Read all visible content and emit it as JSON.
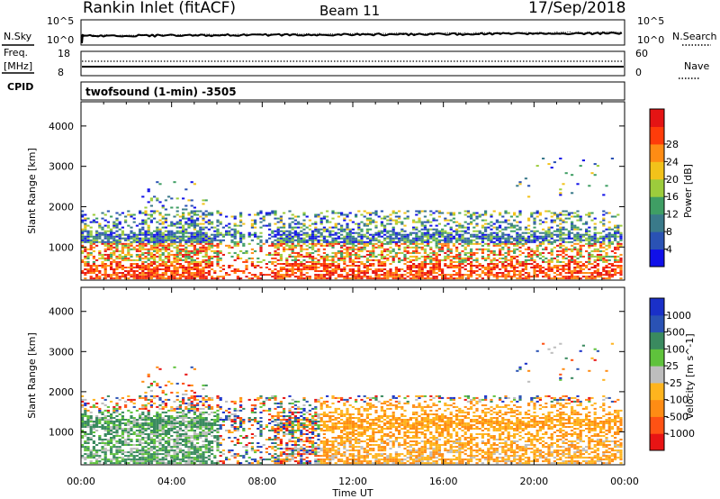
{
  "header": {
    "station": "Rankin Inlet (fitACF)",
    "beam": "Beam 11",
    "date": "17/Sep/2018"
  },
  "noise_panel": {
    "left_label": "N.Sky",
    "right_label": "N.Search",
    "left_ticks": [
      "10^5",
      "10^0"
    ],
    "right_ticks": [
      "10^5",
      "10^0"
    ]
  },
  "freq_panel": {
    "label_line1": "Freq.",
    "label_line2": "[MHz]",
    "cpid_label": "CPID",
    "nave_label": "Nave",
    "left_ticks": [
      "18",
      "8"
    ],
    "right_ticks": [
      "60",
      "0"
    ]
  },
  "cpid_text": "twofsound (1-min) -3505",
  "colors": {
    "power_scale": [
      "#1010e8",
      "#2a52b4",
      "#3a7a8a",
      "#3f9e64",
      "#9ccc3c",
      "#f2c21a",
      "#ff8c14",
      "#ff3c0a",
      "#e41414"
    ],
    "velocity_scale": [
      "#e81414",
      "#ff5214",
      "#ff8c14",
      "#ffb41e",
      "#bdbdbd",
      "#5fc23c",
      "#3a8a5f",
      "#2a52b4",
      "#1a30c8"
    ],
    "ground_scatter": "#bdbdbd"
  },
  "chart_data": [
    {
      "type": "heatmap",
      "name": "power",
      "ylabel": "Slant Range [km]",
      "ylim": [
        180,
        4600
      ],
      "yticks": [
        1000,
        2000,
        3000,
        4000
      ],
      "colorbar_label": "Power [dB]",
      "colorbar_ticks": [
        "4",
        "8",
        "12",
        "16",
        "20",
        "24",
        "28"
      ],
      "colorbar_range": [
        0,
        32
      ]
    },
    {
      "type": "heatmap",
      "name": "velocity",
      "ylabel": "Slant Range [km]",
      "ylim": [
        180,
        4600
      ],
      "yticks": [
        1000,
        2000,
        3000,
        4000
      ],
      "colorbar_label": "Velocity [m s^-1]",
      "colorbar_ticks": [
        "1000",
        "500",
        "100",
        "25",
        "-25",
        "-100",
        "-500",
        "-1000"
      ]
    }
  ],
  "time_axis": {
    "xlabel": "Time UT",
    "ticks": [
      "00:00",
      "04:00",
      "08:00",
      "12:00",
      "16:00",
      "20:00",
      "00:00"
    ],
    "range_hours": [
      0,
      24
    ]
  }
}
